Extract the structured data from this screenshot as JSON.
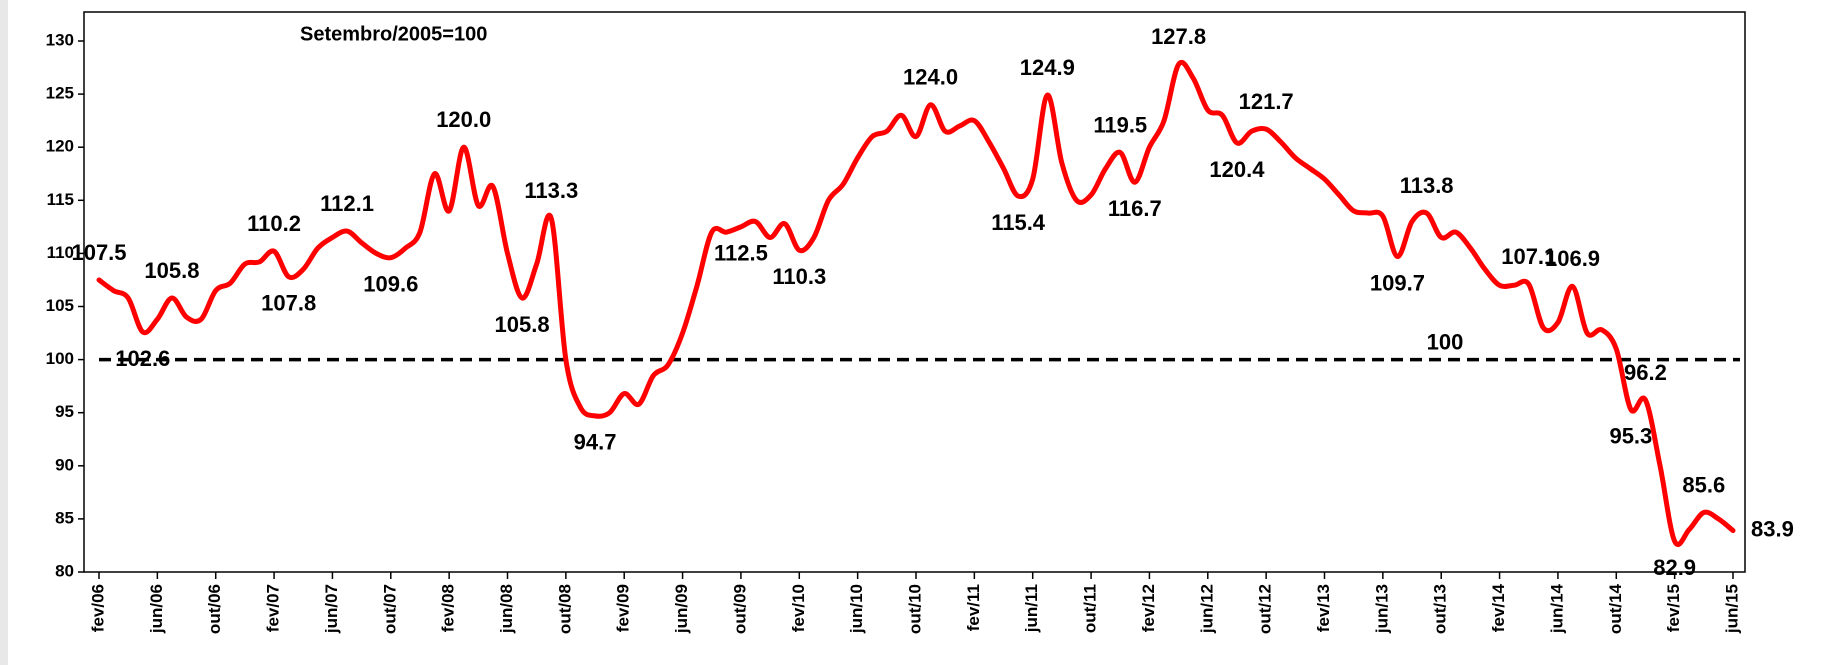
{
  "chart_data": {
    "type": "line",
    "subtitle": "Setembro/2005=100",
    "categories": [
      "fev/06",
      null,
      null,
      null,
      "jun/06",
      null,
      null,
      null,
      "out/06",
      null,
      null,
      null,
      "fev/07",
      null,
      null,
      null,
      "jun/07",
      null,
      null,
      null,
      "out/07",
      null,
      null,
      null,
      "fev/08",
      null,
      null,
      null,
      "jun/08",
      null,
      null,
      null,
      "out/08",
      null,
      null,
      null,
      "fev/09",
      null,
      null,
      null,
      "jun/09",
      null,
      null,
      null,
      "out/09",
      null,
      null,
      null,
      "fev/10",
      null,
      null,
      null,
      "jun/10",
      null,
      null,
      null,
      "out/10",
      null,
      null,
      null,
      "fev/11",
      null,
      null,
      null,
      "jun/11",
      null,
      null,
      null,
      "out/11",
      null,
      null,
      null,
      "fev/12",
      null,
      null,
      null,
      "jun/12",
      null,
      null,
      null,
      "out/12",
      null,
      null,
      null,
      "fev/13",
      null,
      null,
      null,
      "jun/13",
      null,
      null,
      null,
      "out/13",
      null,
      null,
      null,
      "fev/14",
      null,
      null,
      null,
      "jun/14",
      null,
      null,
      null,
      "out/14",
      null,
      null,
      null,
      "fev/15",
      null,
      null,
      null,
      "jun/15"
    ],
    "series": [
      {
        "color": "#ff0000",
        "values": [
          107.5,
          106.5,
          105.8,
          102.6,
          103.8,
          105.8,
          104.0,
          103.8,
          106.5,
          107.2,
          109.0,
          109.2,
          110.2,
          107.8,
          108.5,
          110.5,
          111.5,
          112.1,
          111.0,
          110.0,
          109.6,
          110.5,
          112.0,
          117.5,
          114.0,
          120.0,
          114.5,
          116.3,
          110.0,
          105.8,
          109.0,
          113.3,
          100.0,
          95.5,
          94.7,
          95.0,
          96.8,
          95.8,
          98.5,
          99.5,
          102.5,
          107.0,
          112.0,
          112.0,
          112.5,
          113.0,
          111.5,
          112.8,
          110.3,
          111.5,
          115.0,
          116.5,
          119.0,
          121.0,
          121.5,
          123.0,
          121.0,
          124.0,
          121.5,
          122.0,
          122.5,
          120.5,
          118.0,
          115.4,
          117.0,
          124.9,
          118.5,
          115.0,
          115.5,
          118.0,
          119.5,
          116.7,
          120.0,
          122.5,
          127.8,
          126.5,
          123.5,
          123.0,
          120.4,
          121.5,
          121.7,
          120.5,
          119.0,
          118.0,
          117.0,
          115.5,
          114.0,
          113.8,
          113.5,
          109.7,
          113.0,
          113.8,
          111.5,
          112.0,
          110.5,
          108.5,
          107.0,
          107.0,
          107.1,
          103.0,
          103.5,
          106.9,
          102.5,
          102.8,
          101.0,
          95.3,
          96.2,
          90.0,
          82.9,
          84.0,
          85.6,
          85.0,
          83.9
        ],
        "value_labels": [
          "107.5",
          null,
          null,
          "102.6",
          null,
          "105.8",
          null,
          null,
          null,
          null,
          null,
          null,
          "110.2",
          "107.8",
          null,
          null,
          null,
          "112.1",
          null,
          null,
          "109.6",
          null,
          null,
          null,
          null,
          "120.0",
          null,
          null,
          null,
          "105.8",
          null,
          "113.3",
          null,
          null,
          "94.7",
          null,
          null,
          null,
          null,
          null,
          null,
          null,
          null,
          null,
          "112.5",
          null,
          null,
          null,
          "110.3",
          null,
          null,
          null,
          null,
          null,
          null,
          null,
          null,
          "124.0",
          null,
          null,
          null,
          null,
          null,
          "115.4",
          null,
          "124.9",
          null,
          null,
          null,
          null,
          "119.5",
          "116.7",
          null,
          null,
          "127.8",
          null,
          null,
          null,
          "120.4",
          null,
          "121.7",
          null,
          null,
          null,
          null,
          null,
          null,
          null,
          null,
          "109.7",
          null,
          "113.8",
          null,
          null,
          null,
          null,
          null,
          null,
          "107.1",
          null,
          null,
          "106.9",
          null,
          null,
          null,
          "95.3",
          "96.2",
          null,
          "82.9",
          null,
          "85.6",
          null,
          "83.9"
        ]
      }
    ],
    "reference_line": {
      "value": 100,
      "label": "100"
    },
    "ylim": [
      80,
      130
    ],
    "yticks": [
      80,
      85,
      90,
      95,
      100,
      105,
      110,
      115,
      120,
      125,
      130
    ]
  }
}
